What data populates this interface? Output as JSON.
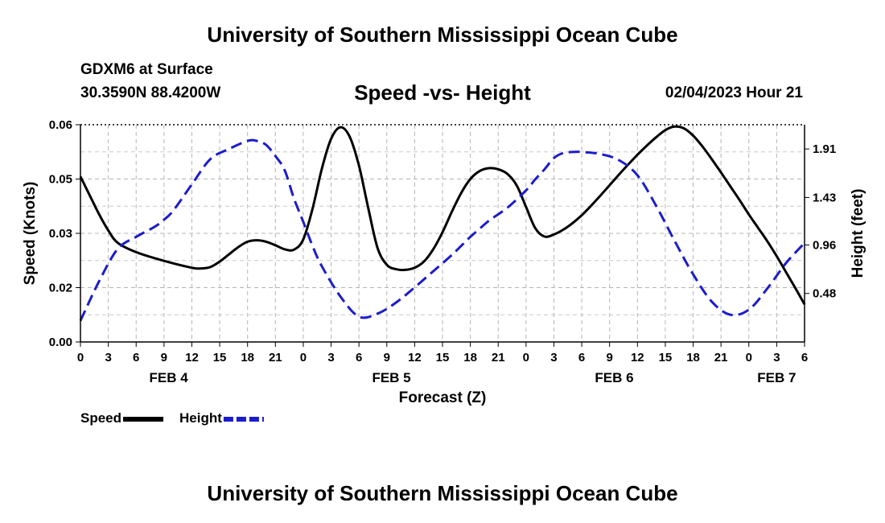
{
  "header": {
    "title": "University of Southern Mississippi Ocean Cube",
    "station": "GDXM6 at Surface",
    "coordinates": "30.3590N  88.4200W",
    "subtitle": "Speed -vs- Height",
    "datetime": "02/04/2023 Hour 21"
  },
  "footer": {
    "title": "University of Southern Mississippi Ocean Cube"
  },
  "chart_data": {
    "type": "line",
    "title": "Speed -vs- Height",
    "xlabel": "Forecast (Z)",
    "ylabel_left": "Speed (Knots)",
    "ylabel_right": "Height (feet)",
    "x_range_hours": [
      0,
      78
    ],
    "y_left_range": [
      0,
      0.06
    ],
    "y_right_range": [
      0.0,
      2.15
    ],
    "grid": true,
    "x_tick_labels": [
      "0",
      "3",
      "6",
      "9",
      "12",
      "15",
      "18",
      "21",
      "0",
      "3",
      "6",
      "9",
      "12",
      "15",
      "18",
      "21",
      "0",
      "3",
      "6",
      "9",
      "12",
      "15",
      "18",
      "21",
      "0",
      "3",
      "6"
    ],
    "x_date_labels": [
      {
        "label": "FEB 4",
        "hour": 9.5
      },
      {
        "label": "FEB 5",
        "hour": 33.5
      },
      {
        "label": "FEB 6",
        "hour": 57.5
      },
      {
        "label": "FEB 7",
        "hour": 75
      }
    ],
    "y_left_ticks": [
      {
        "value": 0,
        "label": "0.00"
      },
      {
        "value": 0.015,
        "label": "0.02"
      },
      {
        "value": 0.03,
        "label": "0.03"
      },
      {
        "value": 0.045,
        "label": "0.05"
      },
      {
        "value": 0.06,
        "label": "0.06"
      }
    ],
    "y_right_ticks": [
      {
        "value": 0.48,
        "label": "0.48"
      },
      {
        "value": 0.96,
        "label": "0.96"
      },
      {
        "value": 1.43,
        "label": "1.43"
      },
      {
        "value": 1.91,
        "label": "1.91"
      }
    ],
    "series": [
      {
        "name": "Speed",
        "axis": "left",
        "color": "#000000",
        "dash": "solid",
        "x": [
          0,
          1,
          2,
          3,
          4,
          6,
          9,
          12,
          13,
          14,
          15,
          16,
          17,
          18,
          19,
          20,
          21,
          22,
          23,
          24,
          25,
          26,
          27,
          28,
          29,
          30,
          31,
          32,
          33,
          34,
          35,
          36,
          37,
          38,
          39,
          40,
          41,
          42,
          43,
          44,
          45,
          46,
          47,
          48,
          49,
          50,
          51,
          52,
          53,
          54,
          55,
          56,
          57,
          58,
          59,
          60,
          61,
          62,
          63,
          64,
          65,
          66,
          67,
          68,
          69,
          70,
          71,
          72,
          73,
          74,
          75,
          76,
          77,
          78
        ],
        "values": [
          0.0457,
          0.0405,
          0.0353,
          0.0308,
          0.0274,
          0.0248,
          0.0224,
          0.0205,
          0.0203,
          0.0207,
          0.0222,
          0.0242,
          0.0262,
          0.0277,
          0.0281,
          0.0277,
          0.0267,
          0.0256,
          0.0255,
          0.0283,
          0.0368,
          0.0478,
          0.0561,
          0.0593,
          0.0567,
          0.0487,
          0.037,
          0.026,
          0.0213,
          0.0201,
          0.0199,
          0.0205,
          0.0222,
          0.0256,
          0.0303,
          0.0359,
          0.0411,
          0.045,
          0.0472,
          0.048,
          0.0477,
          0.0464,
          0.0432,
          0.0373,
          0.0314,
          0.0291,
          0.0297,
          0.031,
          0.0328,
          0.035,
          0.0376,
          0.0404,
          0.0433,
          0.0462,
          0.049,
          0.0517,
          0.0542,
          0.0565,
          0.0585,
          0.0595,
          0.059,
          0.057,
          0.054,
          0.0505,
          0.0468,
          0.043,
          0.0392,
          0.0352,
          0.0315,
          0.0278,
          0.0237,
          0.0193,
          0.0149,
          0.0104
        ]
      },
      {
        "name": "Height",
        "axis": "right",
        "color": "#1c1ccc",
        "dash": "dashed",
        "x": [
          0,
          2,
          4,
          6,
          8,
          9,
          10,
          12,
          14,
          16,
          18,
          19,
          20,
          21,
          22,
          23,
          24,
          25,
          26,
          28,
          30,
          32,
          34,
          36,
          38,
          40,
          42,
          43,
          44,
          46,
          48,
          49,
          50,
          51,
          52,
          53,
          54,
          56,
          58,
          60,
          62,
          64,
          66,
          68,
          70,
          72,
          74,
          76,
          78
        ],
        "values": [
          0.21,
          0.6,
          0.92,
          1.04,
          1.14,
          1.21,
          1.3,
          1.56,
          1.81,
          1.91,
          1.99,
          1.99,
          1.95,
          1.84,
          1.7,
          1.42,
          1.19,
          0.95,
          0.75,
          0.45,
          0.25,
          0.28,
          0.39,
          0.54,
          0.7,
          0.86,
          1.04,
          1.12,
          1.2,
          1.33,
          1.5,
          1.61,
          1.71,
          1.82,
          1.87,
          1.88,
          1.88,
          1.86,
          1.8,
          1.65,
          1.35,
          1.0,
          0.67,
          0.4,
          0.27,
          0.32,
          0.53,
          0.78,
          0.98
        ]
      }
    ],
    "legend": [
      {
        "label": "Speed",
        "color": "#000000",
        "dash": "solid"
      },
      {
        "label": "Height",
        "color": "#1c1ccc",
        "dash": "dashed"
      }
    ],
    "legend_position": "bottom-left"
  }
}
